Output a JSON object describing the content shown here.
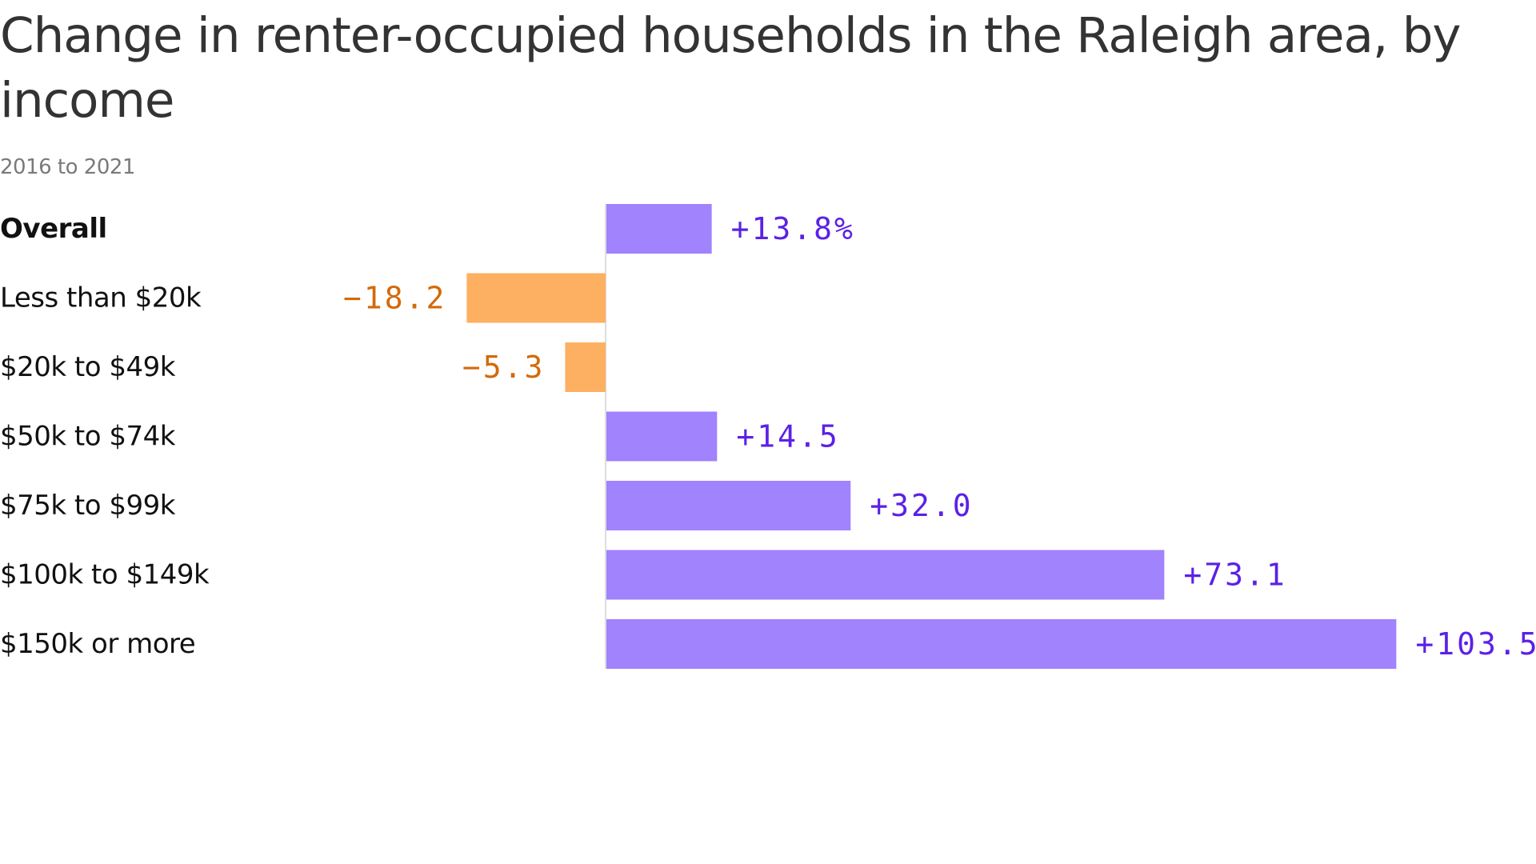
{
  "title": "Change in renter-occupied households in the Raleigh area, by income",
  "subtitle": "2016 to 2021",
  "colors": {
    "positive_bar": "#a083fd",
    "negative_bar": "#fdb061",
    "positive_text": "#5b21e6",
    "negative_text": "#d36a0a",
    "axis_line": "#dddddd"
  },
  "chart_data": {
    "type": "bar",
    "orientation": "horizontal",
    "unit": "%",
    "categories": [
      "Overall",
      "Less than $20k",
      "$20k to $49k",
      "$50k to $74k",
      "$75k to $99k",
      "$100k to $149k",
      "$150k or more"
    ],
    "values": [
      13.8,
      -18.2,
      -5.3,
      14.5,
      32.0,
      73.1,
      103.5
    ],
    "value_labels": [
      "+13.8%",
      "−18.2",
      "−5.3",
      "+14.5",
      "+32.0",
      "+73.1",
      "+103.5"
    ],
    "bold_categories": [
      "Overall"
    ],
    "xlim": [
      -18.2,
      103.5
    ],
    "grid": false,
    "legend": "none"
  }
}
